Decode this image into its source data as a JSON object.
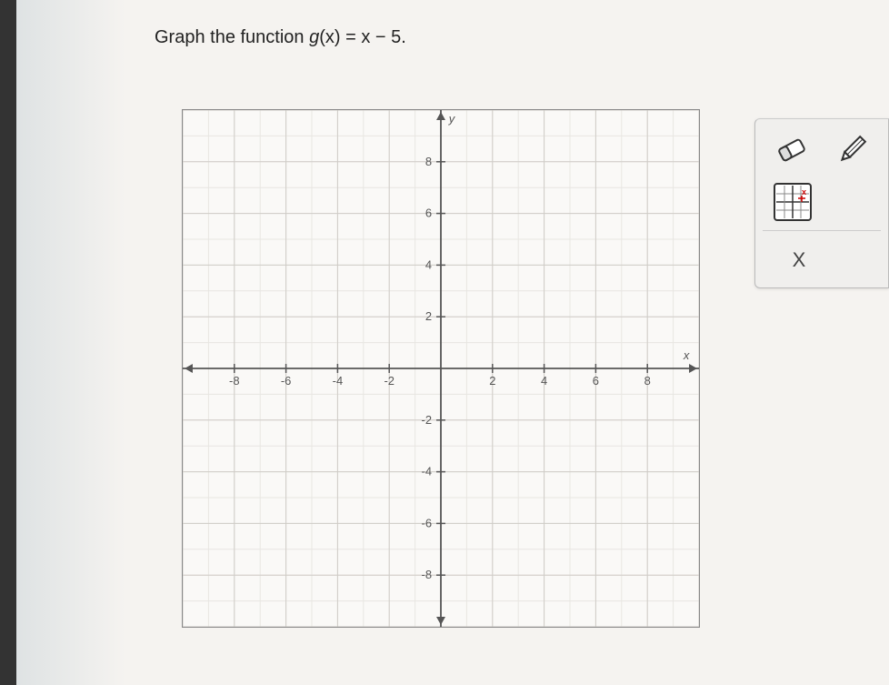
{
  "question": {
    "prefix": "Graph the function ",
    "fn_letter": "g",
    "fn_arg": "(x)",
    "eq": " = x − 5."
  },
  "graph": {
    "type": "cartesian-grid",
    "xlim": [
      -10,
      10
    ],
    "ylim": [
      -10,
      10
    ],
    "major_step": 2,
    "minor_step": 1,
    "x_tick_labels": [
      "-8",
      "-6",
      "-4",
      "-2",
      "2",
      "4",
      "6",
      "8"
    ],
    "x_tick_values": [
      -8,
      -6,
      -4,
      -2,
      2,
      4,
      6,
      8
    ],
    "y_tick_labels": [
      "8",
      "6",
      "4",
      "2",
      "-2",
      "-4",
      "-6",
      "-8"
    ],
    "y_tick_values": [
      8,
      6,
      4,
      2,
      -2,
      -4,
      -6,
      -8
    ],
    "x_axis_label": "x",
    "y_axis_label": "y",
    "background_color": "#faf9f7",
    "minor_grid_color": "#e8e6e2",
    "major_grid_color": "#cfccc7",
    "axis_color": "#555555",
    "tick_label_color": "#555555",
    "tick_fontsize": 13,
    "border_color": "#888888"
  },
  "toolbar": {
    "eraser_label": "eraser",
    "pencil_label": "pencil",
    "grid_tool_label": "grid-settings",
    "close_label": "X"
  }
}
